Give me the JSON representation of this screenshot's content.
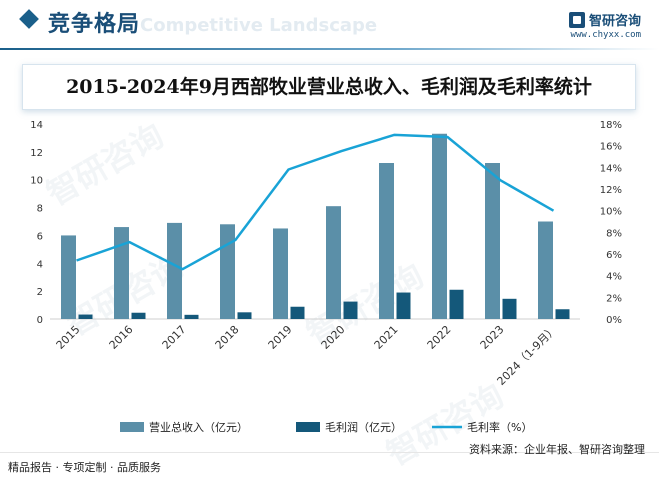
{
  "header": {
    "title": "竞争格局",
    "ghost_text": "Competitive Landscape",
    "brand_name": "智研咨询",
    "brand_url": "www.chyxx.com",
    "accent_color": "#1a4e78"
  },
  "footer": {
    "tagline": "精品报告 · 专项定制 · 品质服务",
    "source": "资料来源：企业年报、智研咨询整理",
    "watermark": "智研咨询"
  },
  "chart_data": {
    "type": "bar",
    "title": "2015-2024年9月西部牧业营业总收入、毛利润及毛利率统计",
    "categories": [
      "2015",
      "2016",
      "2017",
      "2018",
      "2019",
      "2020",
      "2021",
      "2022",
      "2023",
      "2024（1-9月）"
    ],
    "series": [
      {
        "name": "营业总收入（亿元）",
        "type": "bar",
        "axis": "left",
        "color": "#5b8fa8",
        "values": [
          6.0,
          6.6,
          6.9,
          6.8,
          6.5,
          8.1,
          11.2,
          13.3,
          11.2,
          7.0
        ]
      },
      {
        "name": "毛利润（亿元）",
        "type": "bar",
        "axis": "left",
        "color": "#14587a",
        "values": [
          0.32,
          0.45,
          0.3,
          0.48,
          0.88,
          1.25,
          1.9,
          2.1,
          1.45,
          0.7
        ]
      },
      {
        "name": "毛利率（%）",
        "type": "line",
        "axis": "right",
        "color": "#19a3d6",
        "values": [
          5.4,
          7.1,
          4.6,
          7.3,
          13.8,
          15.5,
          17.0,
          16.8,
          12.8,
          10.0
        ]
      }
    ],
    "y_left": {
      "min": 0,
      "max": 14,
      "ticks": [
        "0",
        "2",
        "4",
        "6",
        "8",
        "10",
        "12",
        "14"
      ]
    },
    "y_right": {
      "min": 0,
      "max": 18,
      "ticks": [
        "0%",
        "2%",
        "4%",
        "6%",
        "8%",
        "10%",
        "12%",
        "14%",
        "16%",
        "18%"
      ]
    },
    "grid": false,
    "legend": "bottom"
  }
}
